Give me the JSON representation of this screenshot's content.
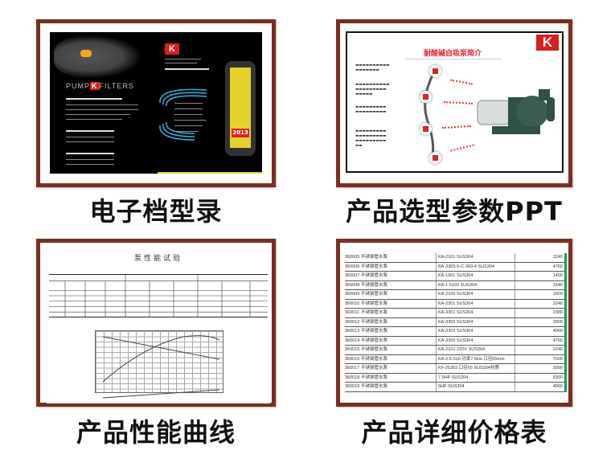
{
  "colors": {
    "frame": "#7a2e22",
    "brand_red": "#d8201f",
    "accent_yellow": "#e3d22c",
    "table_green": "#1c9a5a"
  },
  "cards": [
    {
      "label": "电子档型录",
      "logo": "K",
      "brochure_brand": "PUMP",
      "brochure_brand2": "FILTERS",
      "year": "2013"
    },
    {
      "label": "产品选型参数PPT",
      "logo": "K",
      "title": "耐酸碱自吸泵简介"
    },
    {
      "label": "产品性能曲线",
      "title": "泵性能试验"
    },
    {
      "label": "产品详细价格表",
      "rows": [
        [
          "360005",
          "不锈钢管水泵",
          "KA-2101 SUS304",
          "2240"
        ],
        [
          "360006",
          "不锈钢管水泵",
          "BA-3305-5-C-360-4 SUS304",
          "4760"
        ],
        [
          "360007",
          "不锈钢管水泵",
          "KA-1001 SUS304",
          "1400"
        ],
        [
          "360008",
          "不锈钢管水泵",
          "KA-1.5103 SUS304",
          "1540"
        ],
        [
          "360009",
          "不锈钢管水泵",
          "KA-2105 SUS304",
          "1820"
        ],
        [
          "360010",
          "不锈钢管水泵",
          "KA-2301 SUS304",
          "2240"
        ],
        [
          "360011",
          "不锈钢管水泵",
          "KA-3301 SUS304",
          "2380"
        ],
        [
          "360012",
          "不锈钢管水泵",
          "KA-3302 SUS304",
          "2800"
        ],
        [
          "360013",
          "不锈钢管水泵",
          "KA-3303 SUS304",
          "4060"
        ],
        [
          "360014",
          "不锈钢管水泵",
          "KA-3305 SUS304",
          "4760"
        ],
        [
          "360015",
          "不锈钢管水泵",
          "KA-2101-220V SUS304",
          "2240"
        ],
        [
          "360016",
          "不锈钢管水泵",
          "KA-2.5-310 功率7.5kw 口径65mm",
          "7000"
        ],
        [
          "360017",
          "不锈钢管水泵",
          "KF-25303 口径65 SUS304材质",
          "3990"
        ],
        [
          "360018",
          "不锈钢管水泵",
          "7.5HP SUS304",
          "6300"
        ],
        [
          "360019",
          "不锈钢管水泵",
          "5HP SUS304",
          "4900"
        ]
      ]
    }
  ]
}
